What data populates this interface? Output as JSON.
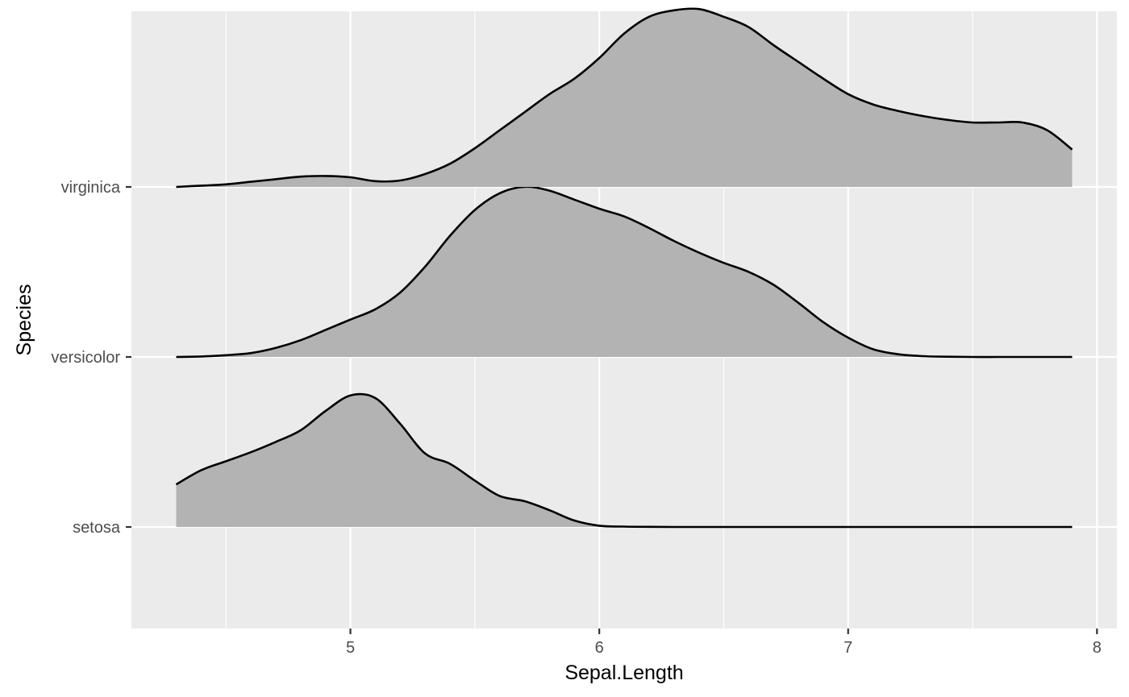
{
  "chart_data": {
    "type": "ridgeline",
    "xlabel": "Sepal.Length",
    "ylabel": "Species",
    "xlim": [
      4.12,
      8.08
    ],
    "x_ticks": [
      5,
      6,
      7,
      8
    ],
    "x_tick_labels": [
      "5",
      "6",
      "7",
      "8"
    ],
    "x_minor_ticks": [
      4.5,
      5.5,
      6.5,
      7.5
    ],
    "grid": true,
    "legend": "none",
    "fill_color": "#b3b3b3",
    "line_color": "#000000",
    "panel_color": "#ebebeb",
    "x": [
      4.3,
      4.4,
      4.5,
      4.6,
      4.7,
      4.8,
      4.9,
      5.0,
      5.1,
      5.2,
      5.3,
      5.4,
      5.5,
      5.6,
      5.7,
      5.8,
      5.9,
      6.0,
      6.1,
      6.2,
      6.3,
      6.4,
      6.5,
      6.6,
      6.7,
      6.8,
      6.9,
      7.0,
      7.1,
      7.2,
      7.3,
      7.4,
      7.5,
      7.6,
      7.7,
      7.8,
      7.9
    ],
    "series": [
      {
        "name": "setosa",
        "values": [
          0.33,
          0.44,
          0.51,
          0.58,
          0.66,
          0.75,
          0.9,
          1.02,
          1.0,
          0.8,
          0.57,
          0.49,
          0.36,
          0.24,
          0.2,
          0.13,
          0.05,
          0.01,
          0.003,
          0.001,
          0,
          0,
          0,
          0,
          0,
          0,
          0,
          0,
          0,
          0,
          0,
          0,
          0,
          0,
          0,
          0,
          0
        ]
      },
      {
        "name": "versicolor",
        "values": [
          0.0,
          0.004,
          0.014,
          0.03,
          0.07,
          0.13,
          0.21,
          0.29,
          0.37,
          0.5,
          0.7,
          0.94,
          1.14,
          1.27,
          1.32,
          1.29,
          1.22,
          1.15,
          1.09,
          1.0,
          0.9,
          0.81,
          0.73,
          0.66,
          0.56,
          0.42,
          0.27,
          0.15,
          0.06,
          0.021,
          0.006,
          0.002,
          0.0,
          0.0,
          0.0,
          0.0,
          0.0
        ]
      },
      {
        "name": "virginica",
        "values": [
          0.0,
          0.01,
          0.02,
          0.04,
          0.06,
          0.08,
          0.085,
          0.075,
          0.045,
          0.05,
          0.1,
          0.18,
          0.3,
          0.44,
          0.58,
          0.72,
          0.84,
          1.0,
          1.19,
          1.32,
          1.37,
          1.38,
          1.32,
          1.24,
          1.1,
          0.97,
          0.84,
          0.72,
          0.64,
          0.59,
          0.55,
          0.52,
          0.5,
          0.5,
          0.5,
          0.44,
          0.29
        ]
      }
    ]
  }
}
